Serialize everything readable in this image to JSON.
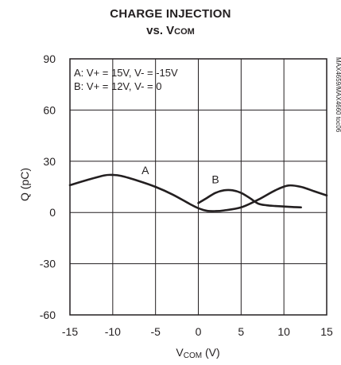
{
  "chart_data": {
    "type": "line",
    "title_line1": "CHARGE INJECTION",
    "title_line2_prefix": "vs. V",
    "title_line2_sub": "COM",
    "xlabel_prefix": "V",
    "xlabel_sub": "COM",
    "xlabel_suffix": " (V)",
    "ylabel": "Q (pC)",
    "xlim": [
      -15,
      15
    ],
    "ylim": [
      -60,
      90
    ],
    "xticks": [
      -15,
      -10,
      -5,
      0,
      5,
      10,
      15
    ],
    "yticks": [
      -60,
      -30,
      0,
      30,
      60,
      90
    ],
    "xtick_labels": [
      "-15",
      "-10",
      "-5",
      "0",
      "5",
      "10",
      "15"
    ],
    "ytick_labels": [
      "-60",
      "-30",
      "0",
      "30",
      "60",
      "90"
    ],
    "grid": true,
    "legend_lines": [
      "A: V+ = 15V, V- = -15V",
      "B: V+ = 12V, V- = 0"
    ],
    "side_note": "MAX4659/MAX4660 toc06",
    "series": [
      {
        "name": "A",
        "x": [
          -15,
          -13,
          -11,
          -10,
          -9,
          -7,
          -5,
          -3,
          -1,
          0,
          1,
          2,
          3,
          5,
          7,
          9,
          10.5,
          12,
          13.5,
          15
        ],
        "y": [
          16,
          19,
          21.7,
          22,
          21.4,
          18.5,
          15,
          10.5,
          5,
          2.5,
          1,
          0.8,
          1.2,
          3,
          7.5,
          13,
          15.8,
          15,
          12.5,
          10
        ]
      },
      {
        "name": "B",
        "x": [
          0,
          1,
          2,
          3,
          4,
          5,
          6,
          7,
          8,
          9,
          10,
          11,
          12
        ],
        "y": [
          5.5,
          8.5,
          11.5,
          13,
          13,
          11.5,
          8.5,
          5.2,
          4.2,
          3.8,
          3.5,
          3.2,
          3
        ]
      }
    ],
    "curve_labels": [
      {
        "text": "A",
        "x": -6.2,
        "y": 22.5
      },
      {
        "text": "B",
        "x": 2.0,
        "y": 17
      }
    ],
    "colors": {
      "ink": "#231f20"
    }
  }
}
